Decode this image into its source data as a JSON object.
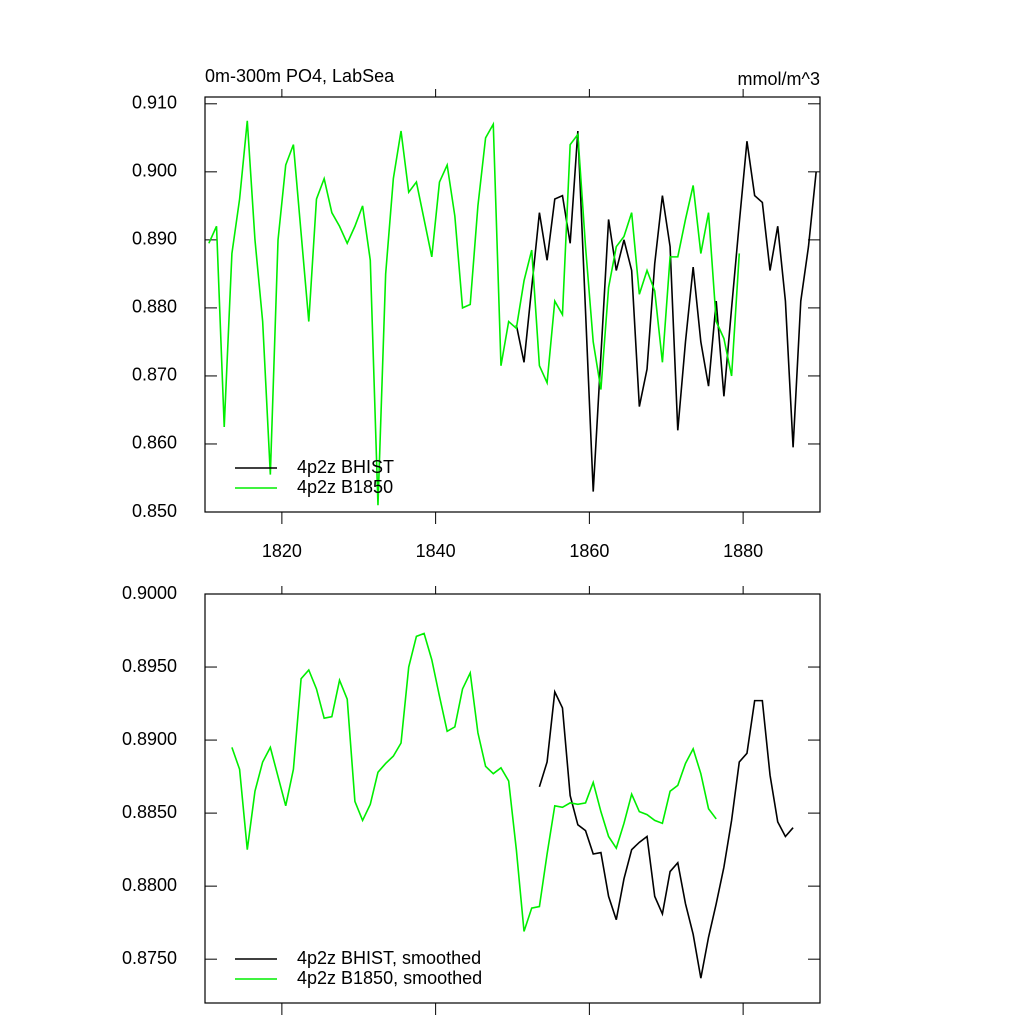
{
  "chart_data": [
    {
      "type": "line",
      "title": "0m-300m PO4, LabSea",
      "units": "mmol/m^3",
      "xlim": [
        1810,
        1890
      ],
      "xticks": [
        1820,
        1840,
        1860,
        1880
      ],
      "ylim": [
        0.85,
        0.911
      ],
      "yticks": [
        {
          "value": 0.85,
          "label": "0.850"
        },
        {
          "value": 0.86,
          "label": "0.860"
        },
        {
          "value": 0.87,
          "label": "0.870"
        },
        {
          "value": 0.88,
          "label": "0.880"
        },
        {
          "value": 0.89,
          "label": "0.890"
        },
        {
          "value": 0.9,
          "label": "0.900"
        },
        {
          "value": 0.91,
          "label": "0.910"
        }
      ],
      "legend": "lower-left",
      "series": [
        {
          "name": "4p2z BHIST",
          "color": "#000000",
          "x": [
            1850.5,
            1851.5,
            1852.5,
            1853.5,
            1854.5,
            1855.5,
            1856.5,
            1857.5,
            1858.5,
            1859.5,
            1860.5,
            1861.5,
            1862.5,
            1863.5,
            1864.5,
            1865.5,
            1866.5,
            1867.5,
            1868.5,
            1869.5,
            1870.5,
            1871.5,
            1872.5,
            1873.5,
            1874.5,
            1875.5,
            1876.5,
            1877.5,
            1878.5,
            1879.5,
            1880.5,
            1881.5,
            1882.5,
            1883.5,
            1884.5,
            1885.5,
            1886.5,
            1887.5,
            1888.5,
            1889.5
          ],
          "values": [
            0.8775,
            0.872,
            0.883,
            0.894,
            0.887,
            0.896,
            0.8965,
            0.8895,
            0.906,
            0.8795,
            0.853,
            0.873,
            0.893,
            0.8855,
            0.89,
            0.8855,
            0.8655,
            0.871,
            0.8865,
            0.8965,
            0.889,
            0.862,
            0.875,
            0.886,
            0.875,
            0.8685,
            0.881,
            0.867,
            0.88,
            0.8925,
            0.9045,
            0.8965,
            0.8955,
            0.8855,
            0.892,
            0.881,
            0.8595,
            0.881,
            0.889,
            0.9
          ]
        },
        {
          "name": "4p2z B1850",
          "color": "#00ee00",
          "x": [
            1810.5,
            1811.5,
            1812.5,
            1813.5,
            1814.5,
            1815.5,
            1816.5,
            1817.5,
            1818.5,
            1819.5,
            1820.5,
            1821.5,
            1822.5,
            1823.5,
            1824.5,
            1825.5,
            1826.5,
            1827.5,
            1828.5,
            1829.5,
            1830.5,
            1831.5,
            1832.5,
            1833.5,
            1834.5,
            1835.5,
            1836.5,
            1837.5,
            1838.5,
            1839.5,
            1840.5,
            1841.5,
            1842.5,
            1843.5,
            1844.5,
            1845.5,
            1846.5,
            1847.5,
            1848.5,
            1849.5,
            1850.5,
            1851.5,
            1852.5,
            1853.5,
            1854.5,
            1855.5,
            1856.5,
            1857.5,
            1858.5,
            1859.5,
            1860.5,
            1861.5,
            1862.5,
            1863.5,
            1864.5,
            1865.5,
            1866.5,
            1867.5,
            1868.5,
            1869.5,
            1870.5,
            1871.5,
            1872.5,
            1873.5,
            1874.5,
            1875.5,
            1876.5,
            1877.5,
            1878.5,
            1879.5
          ],
          "values": [
            0.8895,
            0.892,
            0.8625,
            0.888,
            0.896,
            0.9075,
            0.89,
            0.878,
            0.8555,
            0.89,
            0.901,
            0.904,
            0.891,
            0.878,
            0.896,
            0.899,
            0.894,
            0.892,
            0.8895,
            0.892,
            0.895,
            0.887,
            0.851,
            0.885,
            0.899,
            0.906,
            0.897,
            0.8985,
            0.893,
            0.8875,
            0.8985,
            0.901,
            0.8935,
            0.88,
            0.8805,
            0.895,
            0.905,
            0.907,
            0.8715,
            0.878,
            0.877,
            0.884,
            0.8885,
            0.8715,
            0.869,
            0.881,
            0.879,
            0.904,
            0.9055,
            0.889,
            0.875,
            0.868,
            0.883,
            0.889,
            0.8905,
            0.894,
            0.882,
            0.8855,
            0.8825,
            0.872,
            0.8875,
            0.8875,
            0.893,
            0.898,
            0.888,
            0.894,
            0.878,
            0.8755,
            0.87,
            0.888
          ]
        }
      ]
    },
    {
      "type": "line",
      "xlim": [
        1810,
        1890
      ],
      "xticks": [
        1820,
        1840,
        1860,
        1880
      ],
      "ylim": [
        0.872,
        0.9
      ],
      "yticks": [
        {
          "value": 0.875,
          "label": "0.8750"
        },
        {
          "value": 0.88,
          "label": "0.8800"
        },
        {
          "value": 0.885,
          "label": "0.8850"
        },
        {
          "value": 0.89,
          "label": "0.8900"
        },
        {
          "value": 0.895,
          "label": "0.8950"
        },
        {
          "value": 0.9,
          "label": "0.9000"
        }
      ],
      "legend": "lower-left",
      "series": [
        {
          "name": "4p2z BHIST, smoothed",
          "color": "#000000",
          "x": [
            1853.5,
            1854.5,
            1855.5,
            1856.5,
            1857.5,
            1858.5,
            1859.5,
            1860.5,
            1861.5,
            1862.5,
            1863.5,
            1864.5,
            1865.5,
            1866.5,
            1867.5,
            1868.5,
            1869.5,
            1870.5,
            1871.5,
            1872.5,
            1873.5,
            1874.5,
            1875.5,
            1876.5,
            1877.5,
            1878.5,
            1879.5,
            1880.5,
            1881.5,
            1882.5,
            1883.5,
            1884.5,
            1885.5,
            1886.5
          ],
          "values": [
            0.8868,
            0.8885,
            0.8933,
            0.8922,
            0.8862,
            0.8842,
            0.8838,
            0.8822,
            0.8823,
            0.8793,
            0.8777,
            0.8805,
            0.8825,
            0.883,
            0.8834,
            0.8793,
            0.8781,
            0.881,
            0.8816,
            0.8788,
            0.8767,
            0.8737,
            0.8765,
            0.8788,
            0.8813,
            0.8845,
            0.8885,
            0.8891,
            0.8927,
            0.8927,
            0.8876,
            0.8844,
            0.8834,
            0.884
          ]
        },
        {
          "name": "4p2z B1850, smoothed",
          "color": "#00ee00",
          "x": [
            1813.5,
            1814.5,
            1815.5,
            1816.5,
            1817.5,
            1818.5,
            1819.5,
            1820.5,
            1821.5,
            1822.5,
            1823.5,
            1824.5,
            1825.5,
            1826.5,
            1827.5,
            1828.5,
            1829.5,
            1830.5,
            1831.5,
            1832.5,
            1833.5,
            1834.5,
            1835.5,
            1836.5,
            1837.5,
            1838.5,
            1839.5,
            1840.5,
            1841.5,
            1842.5,
            1843.5,
            1844.5,
            1845.5,
            1846.5,
            1847.5,
            1848.5,
            1849.5,
            1850.5,
            1851.5,
            1852.5,
            1853.5,
            1854.5,
            1855.5,
            1856.5,
            1857.5,
            1858.5,
            1859.5,
            1860.5,
            1861.5,
            1862.5,
            1863.5,
            1864.5,
            1865.5,
            1866.5,
            1867.5,
            1868.5,
            1869.5,
            1870.5,
            1871.5,
            1872.5,
            1873.5,
            1874.5,
            1875.5,
            1876.5
          ],
          "values": [
            0.8895,
            0.888,
            0.8825,
            0.8865,
            0.8885,
            0.8895,
            0.8875,
            0.8855,
            0.888,
            0.8942,
            0.8948,
            0.8935,
            0.8915,
            0.8916,
            0.8941,
            0.8928,
            0.8858,
            0.8845,
            0.8856,
            0.8878,
            0.8884,
            0.8889,
            0.8898,
            0.895,
            0.8971,
            0.8973,
            0.8955,
            0.893,
            0.8906,
            0.8909,
            0.8935,
            0.8946,
            0.8905,
            0.8882,
            0.8877,
            0.8881,
            0.8872,
            0.8825,
            0.8769,
            0.8785,
            0.8786,
            0.8822,
            0.8855,
            0.8854,
            0.8857,
            0.8856,
            0.8857,
            0.8871,
            0.8851,
            0.8834,
            0.8826,
            0.8843,
            0.8863,
            0.8851,
            0.8849,
            0.8845,
            0.8843,
            0.8865,
            0.8869,
            0.8884,
            0.8894,
            0.8877,
            0.8853,
            0.8846
          ]
        }
      ]
    }
  ]
}
